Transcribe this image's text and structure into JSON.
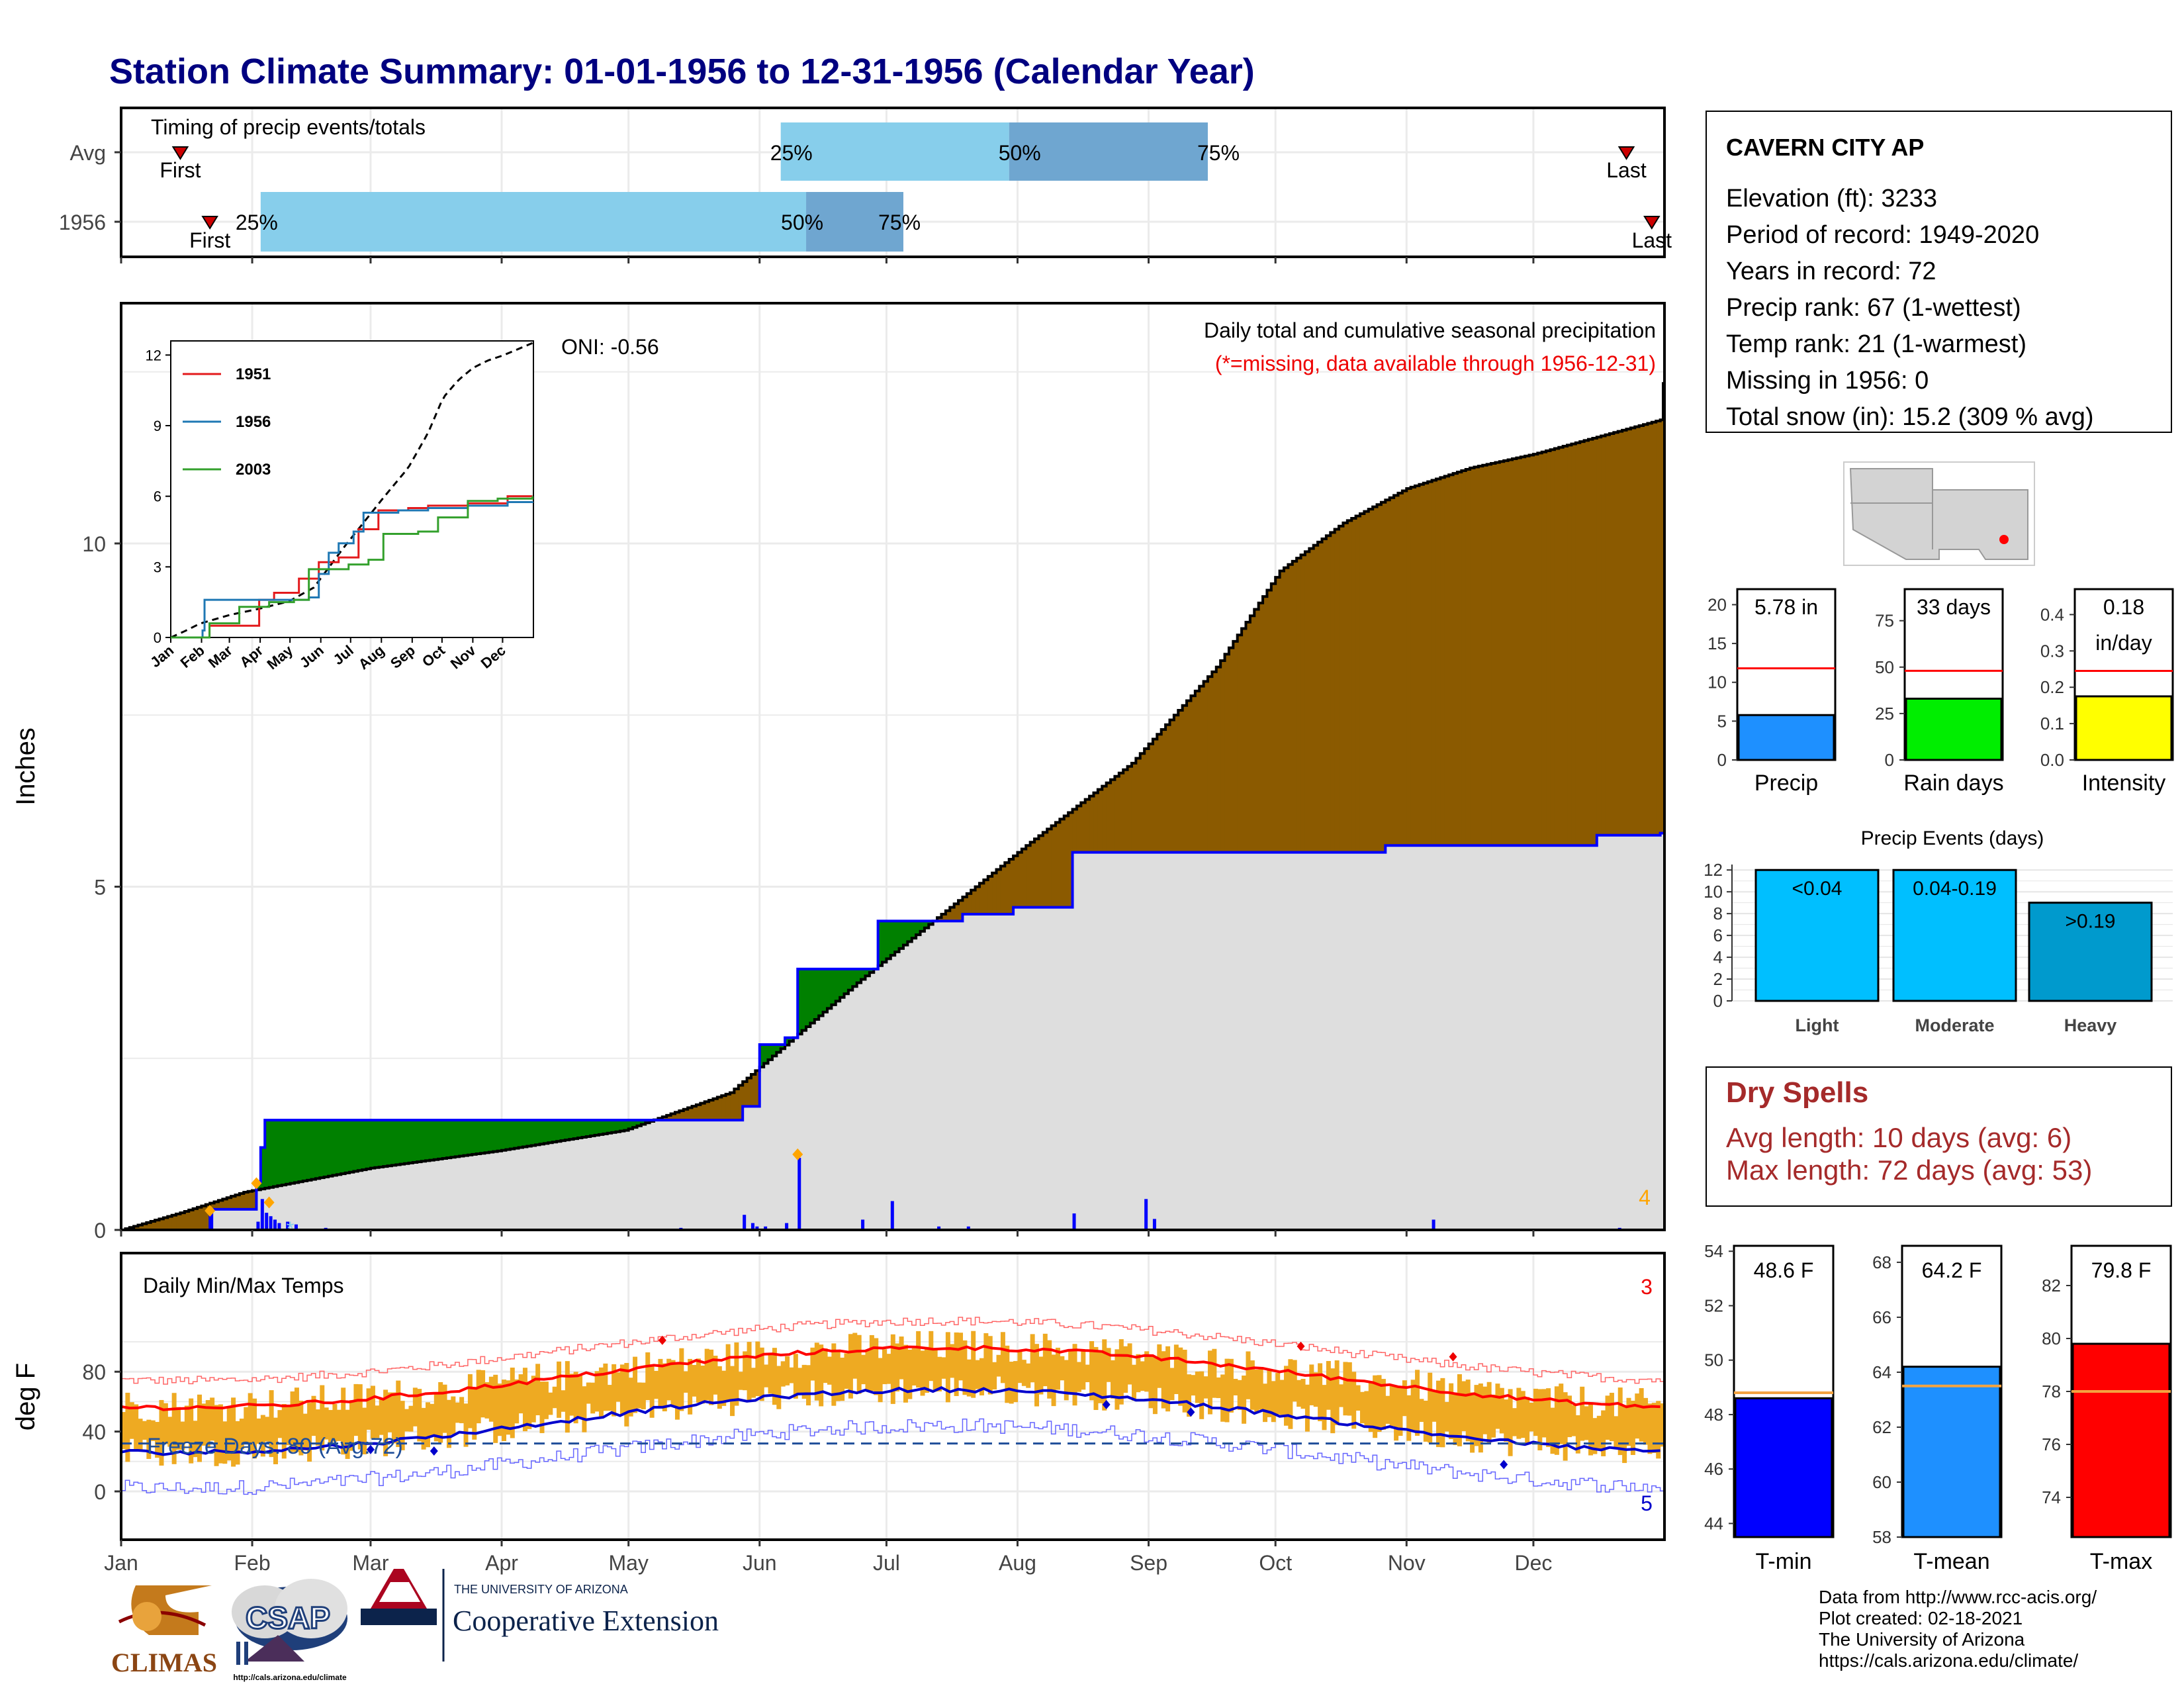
{
  "title": "Station Climate Summary: 01-01-1956 to 12-31-1956 (Calendar Year)",
  "months": [
    "Jan",
    "Feb",
    "Mar",
    "Apr",
    "May",
    "Jun",
    "Jul",
    "Aug",
    "Sep",
    "Oct",
    "Nov",
    "Dec"
  ],
  "station": {
    "name": "CAVERN CITY AP",
    "lines": [
      "Elevation (ft): 3233",
      "Period of record: 1949-2020",
      "Years in record: 72",
      "Precip rank: 67 (1-wettest)",
      "Temp rank: 21 (1-warmest)",
      "Missing in 1956: 0",
      "Total snow (in): 15.2 (309 % avg)"
    ]
  },
  "timing": {
    "title": "Timing of precip events/totals",
    "rows": [
      "Avg",
      "1956"
    ],
    "first_label": "First",
    "last_label": "Last",
    "pct_labels": [
      "25%",
      "50%",
      "75%"
    ],
    "avg": {
      "first_doy": 15,
      "q25_doy": 157,
      "q50_doy": 211,
      "q75_doy": 258,
      "last_doy": 357
    },
    "y1956": {
      "first_doy": 22,
      "q25_doy": 34,
      "q50_doy": 163,
      "q75_doy": 186,
      "last_doy": 363
    }
  },
  "precip_panel": {
    "ylabel": "Inches",
    "caption1": "Daily total and cumulative seasonal precipitation",
    "caption2": "(*=missing, data available through 1956-12-31)",
    "oni": "ONI: -0.56",
    "corner_count": "4",
    "yticks": [
      0,
      5,
      10
    ],
    "ymax": 13.5
  },
  "inset": {
    "yticks": [
      0,
      3,
      6,
      9,
      12
    ],
    "series": [
      {
        "name": "1951",
        "color": "#e31a1c"
      },
      {
        "name": "1956",
        "color": "#1f78b4"
      },
      {
        "name": "2003",
        "color": "#33a02c"
      }
    ]
  },
  "temp_panel": {
    "title": "Daily Min/Max Temps",
    "ylabel": "deg F",
    "freeze_text": "Freeze Days: 80 (Avg:72)",
    "count_hi": "3",
    "count_lo": "5",
    "yticks": [
      0,
      40,
      80
    ]
  },
  "bar_stats": [
    {
      "label": "Precip",
      "value_text": "5.78 in",
      "value": 5.78,
      "avg": 11.8,
      "ymax": 22,
      "yticks": [
        0,
        5,
        10,
        15,
        20
      ],
      "tick_labels": [
        "0",
        "5",
        "10",
        "15",
        "20"
      ],
      "color": "#1e90ff"
    },
    {
      "label": "Rain days",
      "value_text": "33 days",
      "value": 33,
      "avg": 48,
      "ymax": 92,
      "yticks": [
        0,
        25,
        50,
        75
      ],
      "tick_labels": [
        "0",
        "25",
        "50",
        "75"
      ],
      "color": "#00ee00"
    },
    {
      "label": "Intensity",
      "value_text": "0.18",
      "value_text2": "in/day",
      "value": 0.175,
      "avg": 0.245,
      "ymax": 0.47,
      "yticks": [
        0,
        0.1,
        0.2,
        0.3,
        0.4
      ],
      "tick_labels": [
        "0.0",
        "0.1",
        "0.2",
        "0.3",
        "0.4"
      ],
      "color": "#ffff00"
    }
  ],
  "events": {
    "title": "Precip Events (days)",
    "ymax": 12.5,
    "yticks": [
      0,
      2,
      4,
      6,
      8,
      10,
      12
    ],
    "bars": [
      {
        "label": "Light",
        "range": "<0.04",
        "value": 12,
        "color": "#00bfff"
      },
      {
        "label": "Moderate",
        "range": "0.04-0.19",
        "value": 12,
        "color": "#00bfff"
      },
      {
        "label": "Heavy",
        "range": ">0.19",
        "value": 9,
        "color": "#009acd"
      }
    ]
  },
  "dry_spells": {
    "title": "Dry Spells",
    "avg_line": "Avg length: 10 days (avg: 6)",
    "max_line": "Max length: 72 days (avg: 53)"
  },
  "temp_stats": [
    {
      "label": "T-min",
      "value_text": "48.6 F",
      "value": 48.6,
      "avg": 48.8,
      "ymin": 43.5,
      "ymax": 54.2,
      "yticks": [
        44,
        46,
        48,
        50,
        52,
        54
      ],
      "color": "#0000ff"
    },
    {
      "label": "T-mean",
      "value_text": "64.2 F",
      "value": 64.2,
      "avg": 63.5,
      "ymin": 58,
      "ymax": 68.6,
      "yticks": [
        58,
        60,
        62,
        64,
        66,
        68
      ],
      "color": "#1e90ff"
    },
    {
      "label": "T-max",
      "value_text": "79.8 F",
      "value": 79.8,
      "avg": 78,
      "ymin": 72.5,
      "ymax": 83.5,
      "yticks": [
        74,
        76,
        78,
        80,
        82
      ],
      "color": "#ff0000"
    }
  ],
  "footer": {
    "lines": [
      "Data from http://www.rcc-acis.org/",
      "Plot created: 02-18-2021",
      "The University of Arizona",
      "https://cals.arizona.edu/climate/"
    ],
    "logo_climas": "CLIMAS",
    "logo_csap": "CSAP",
    "logo_csap_url": "http://cals.arizona.edu/climate",
    "ua_top": "THE UNIVERSITY OF ARIZONA",
    "ua_bottom": "Cooperative Extension"
  },
  "chart_data": {
    "type": "area",
    "title": "Station Climate Summary: 01-01-1956 to 12-31-1956 (Calendar Year)",
    "ylabel": "Inches",
    "ylim": [
      0,
      13.5
    ],
    "series": [
      {
        "name": "cumulative average",
        "x": [
          1,
          15,
          30,
          60,
          90,
          120,
          145,
          160,
          175,
          195,
          215,
          240,
          260,
          275,
          290,
          305,
          320,
          335,
          350,
          365
        ],
        "y": [
          0,
          0.25,
          0.55,
          0.9,
          1.15,
          1.45,
          2.0,
          2.8,
          3.6,
          4.6,
          5.6,
          6.8,
          8.2,
          9.6,
          10.3,
          10.8,
          11.1,
          11.3,
          11.55,
          11.8
        ]
      },
      {
        "name": "cumulative 1956",
        "x": [
          1,
          21,
          22,
          32,
          33,
          34,
          35,
          133,
          148,
          152,
          158,
          161,
          180,
          200,
          212,
          226,
          300,
          350,
          365
        ],
        "y": [
          0,
          0,
          0.3,
          0.3,
          0.7,
          1.2,
          1.6,
          1.6,
          1.8,
          2.7,
          2.8,
          3.8,
          4.5,
          4.6,
          4.7,
          5.5,
          5.6,
          5.75,
          5.78
        ]
      }
    ]
  }
}
